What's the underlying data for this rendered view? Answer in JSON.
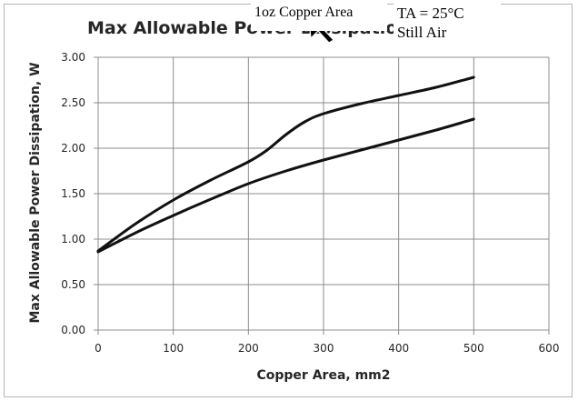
{
  "chart_data": {
    "type": "line",
    "title": "Max Allowable Power Dissipation",
    "xlabel": "Copper Area, mm2",
    "ylabel": "Max Allowable Power Dissipation, W",
    "xlim": [
      0,
      600
    ],
    "ylim": [
      0,
      3
    ],
    "x_ticks": [
      "0",
      "100",
      "200",
      "300",
      "400",
      "500",
      "600"
    ],
    "y_ticks": [
      "0.00",
      "0.50",
      "1.00",
      "1.50",
      "2.00",
      "2.50",
      "3.00"
    ],
    "grid": true,
    "legend": "none",
    "line_color": "#111111",
    "series": [
      {
        "x": [
          0,
          50,
          100,
          150,
          200,
          225,
          250,
          275,
          300,
          350,
          400,
          450,
          500
        ],
        "values": [
          0.87,
          1.17,
          1.43,
          1.65,
          1.85,
          1.98,
          2.15,
          2.29,
          2.38,
          2.49,
          2.58,
          2.67,
          2.78
        ]
      },
      {
        "x": [
          0,
          50,
          100,
          150,
          200,
          250,
          300,
          350,
          400,
          450,
          500
        ],
        "values": [
          0.86,
          1.07,
          1.26,
          1.44,
          1.61,
          1.75,
          1.87,
          1.98,
          2.09,
          2.2,
          2.32
        ]
      }
    ]
  },
  "overlay": {
    "label_1": "1oz Copper Area",
    "label_2_line1": "TA = 25°C",
    "label_2_line2": "Still Air"
  }
}
